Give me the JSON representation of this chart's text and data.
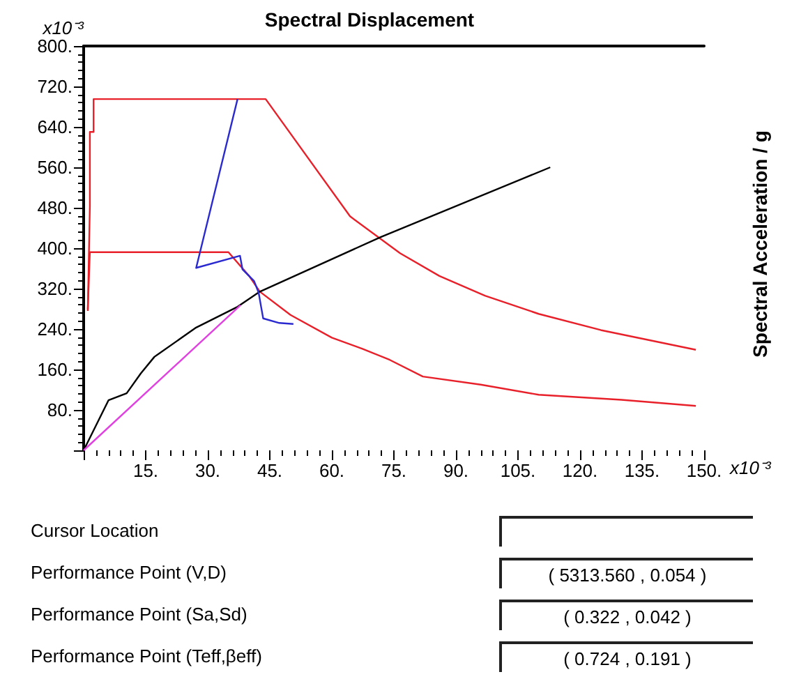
{
  "chart_data": {
    "type": "line",
    "title": "Spectral Displacement",
    "xlabel": "x10⁻³",
    "ylabel": "x10⁻³",
    "annotations": [
      "Spectral Acceleration / g",
      "Cursor Location",
      "Performance Point (V,D)",
      "( 5313.560 , 0.054 )",
      "Performance Point (Sa,Sd)",
      "( 0.322 , 0.042 )",
      "Performance Point (Teff,βeff)",
      "( 0.724 , 0.191 )"
    ],
    "xlim": [
      0,
      150
    ],
    "ylim": [
      0,
      800
    ],
    "xticks": [
      {
        "value": 15,
        "label": "15."
      },
      {
        "value": 30,
        "label": "30."
      },
      {
        "value": 45,
        "label": "45."
      },
      {
        "value": 60,
        "label": "60."
      },
      {
        "value": 75,
        "label": "75."
      },
      {
        "value": 90,
        "label": "90."
      },
      {
        "value": 105,
        "label": "105."
      },
      {
        "value": 120,
        "label": "120."
      },
      {
        "value": 135,
        "label": "135."
      },
      {
        "value": 150,
        "label": "150."
      }
    ],
    "yticks": [
      {
        "value": 80,
        "label": "80."
      },
      {
        "value": 160,
        "label": "160."
      },
      {
        "value": 240,
        "label": "240."
      },
      {
        "value": 320,
        "label": "320."
      },
      {
        "value": 400,
        "label": "400."
      },
      {
        "value": 480,
        "label": "480."
      },
      {
        "value": 560,
        "label": "560."
      },
      {
        "value": 640,
        "label": "640."
      },
      {
        "value": 720,
        "label": "720."
      },
      {
        "value": 800,
        "label": "800."
      }
    ],
    "grid": false,
    "marker": "none",
    "line_style": "solid",
    "series": [
      {
        "color": "#e8202a",
        "x": [
          1,
          1.5,
          1.5,
          2.4,
          2.4,
          44,
          64.4,
          76.5,
          86,
          97,
          110,
          125,
          148
        ],
        "values": [
          276,
          483,
          630,
          630,
          695,
          695,
          463,
          390,
          345,
          306,
          270,
          238,
          199
        ]
      },
      {
        "color": "#e8202a",
        "x": [
          1,
          1.5,
          2.7,
          35,
          40,
          42.6,
          50,
          60,
          67.4,
          74,
          82,
          96,
          110,
          130,
          148
        ],
        "values": [
          279,
          392,
          392,
          392,
          345,
          314,
          268,
          223,
          201,
          179,
          146,
          130,
          110,
          100,
          88
        ]
      },
      {
        "color": "#000000",
        "x": [
          0,
          6,
          10.4,
          13.8,
          17.1,
          27.2,
          37.2,
          42.6,
          71.8,
          112.8
        ],
        "values": [
          0,
          99,
          113,
          152,
          185,
          243,
          284,
          314,
          422,
          560
        ]
      },
      {
        "color": "#e040e0",
        "x": [
          0,
          37.9
        ],
        "values": [
          0,
          287
        ]
      },
      {
        "color": "#2a2ad0",
        "x": [
          37.2,
          27.2,
          37.8,
          38.4,
          41.2,
          42.3,
          42.9,
          43.4,
          47.3,
          50.7
        ],
        "values": [
          695,
          361,
          385,
          358,
          335,
          312,
          284,
          261,
          252,
          250
        ]
      }
    ]
  }
}
